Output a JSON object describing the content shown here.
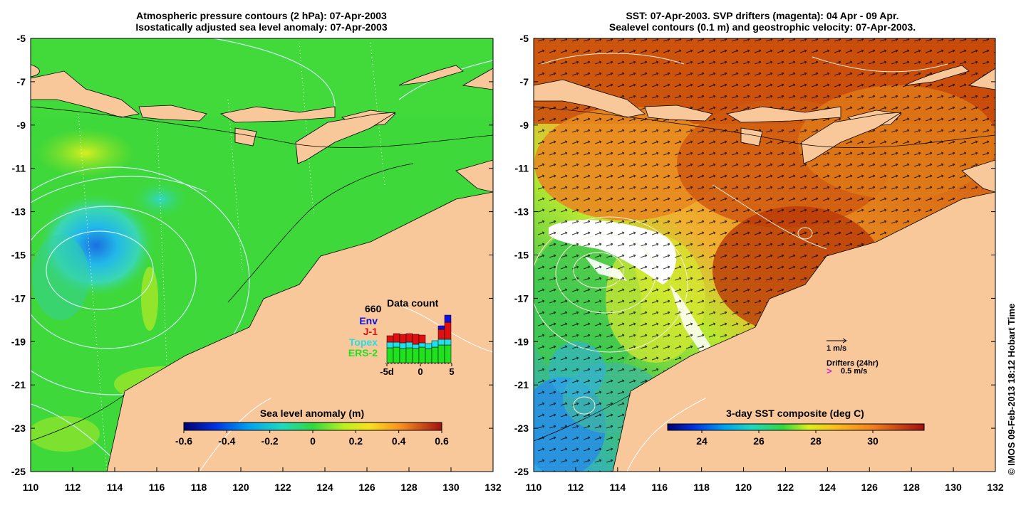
{
  "left_panel": {
    "title_line1": "Atmospheric pressure contours (2 hPa): 07-Apr-2003",
    "title_line2": "Isostatically adjusted sea level anomaly: 07-Apr-2003",
    "colorbar_label": "Sea level anomaly (m)",
    "colorbar_ticks": [
      "-0.6",
      "-0.4",
      "-0.2",
      "0",
      "0.2",
      "0.4",
      "0.6"
    ],
    "data_count": {
      "title": "Data count",
      "total": "660",
      "legend": [
        {
          "label": "Env",
          "color": "#1010e0"
        },
        {
          "label": "J-1",
          "color": "#e01010"
        },
        {
          "label": "Topex",
          "color": "#20e0e8"
        },
        {
          "label": "ERS-2",
          "color": "#20e020"
        }
      ],
      "x_ticks": [
        "-5d",
        "0",
        "5"
      ]
    }
  },
  "right_panel": {
    "title_line1": "SST: 07-Apr-2003. SVP drifters (magenta): 04 Apr - 09 Apr.",
    "title_line2": "Sealevel contours (0.1 m) and geostrophic velocity: 07-Apr-2003.",
    "colorbar_label": "3-day SST composite (deg C)",
    "colorbar_ticks": [
      "24",
      "26",
      "28",
      "30"
    ],
    "vector_scale_label": "1 m/s",
    "drifters_label": "Drifters (24hr)",
    "drifter_scale_label": "0.5 m/s",
    "drifter_color": "#e020e0"
  },
  "axes": {
    "lat_labels": [
      "-5",
      "-7",
      "-9",
      "-11",
      "-13",
      "-15",
      "-17",
      "-19",
      "-21",
      "-23",
      "-25"
    ],
    "lon_labels": [
      "110",
      "112",
      "114",
      "116",
      "118",
      "120",
      "122",
      "124",
      "126",
      "128",
      "130",
      "132"
    ]
  },
  "colors": {
    "land": "#f9c89a",
    "ocean_sla": "#3ed83a",
    "sst_warm": "#c8520a"
  },
  "credit": "© IMOS 09-Feb-2013 18:12 Hobart Time"
}
